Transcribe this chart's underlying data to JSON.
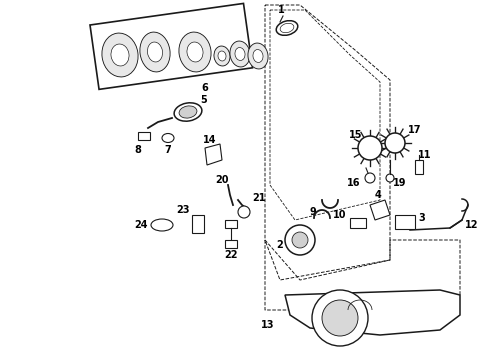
{
  "background_color": "#ffffff",
  "line_color": "#1a1a1a",
  "fig_width": 4.9,
  "fig_height": 3.6,
  "dpi": 100,
  "label_fontsize": 7,
  "label_color": "#000000"
}
